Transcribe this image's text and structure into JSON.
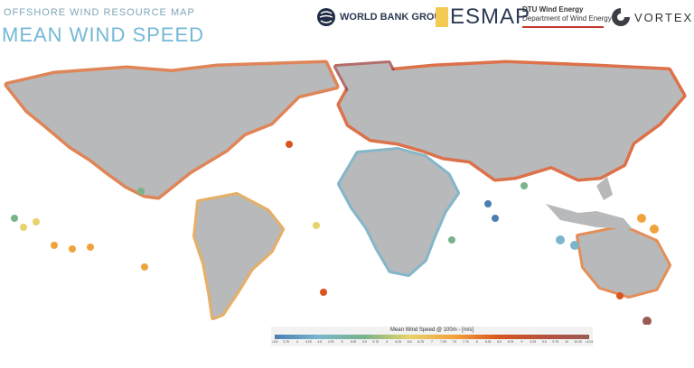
{
  "header": {
    "subtitle": "OFFSHORE WIND RESOURCE MAP",
    "title": "MEAN WIND SPEED"
  },
  "logos": {
    "world_bank": "WORLD BANK GROUP",
    "esmap": "ESMAP",
    "dtu_line1": "DTU Wind Energy",
    "dtu_line2": "Department of Wind Energy",
    "vortex": "VORTEX"
  },
  "legend": {
    "title": "Mean Wind Speed @ 100m - [m/s]",
    "ticks": [
      "<3.5",
      "3.75",
      "4",
      "4.25",
      "4.5",
      "4.75",
      "5",
      "5.25",
      "5.5",
      "5.75",
      "6",
      "6.25",
      "6.5",
      "6.75",
      "7",
      "7.25",
      "7.5",
      "7.75",
      "8",
      "8.25",
      "8.5",
      "8.75",
      "9",
      "9.25",
      "9.5",
      "9.75",
      "10",
      "10.25",
      ">10.5"
    ]
  },
  "colors": {
    "land": "#b8b9bb",
    "ocean": "#ffffff",
    "low": "#4b7fb3",
    "mid": "#e6d36b",
    "high": "#d9541e",
    "very_high": "#9b5a55"
  }
}
